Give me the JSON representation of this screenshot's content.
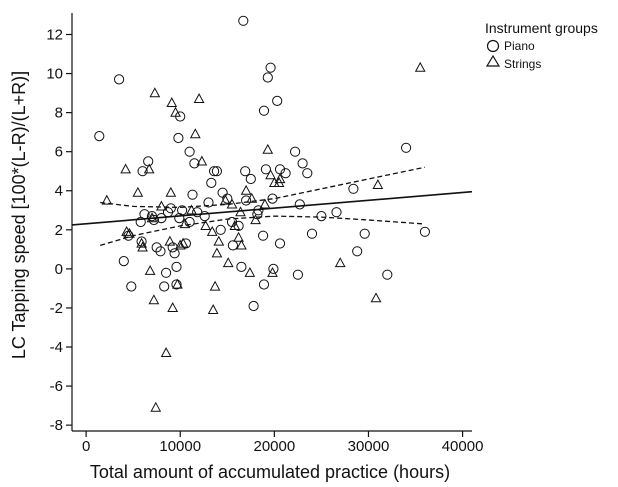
{
  "chart_data": {
    "type": "scatter",
    "xlabel": "Total amount of accumulated practice (hours)",
    "ylabel": "LC Tapping speed [100*(L-R)/(L+R)]",
    "xlim": [
      -1500,
      41000
    ],
    "ylim": [
      -8.3,
      13.1
    ],
    "xticks": [
      0,
      10000,
      20000,
      30000,
      40000
    ],
    "yticks": [
      -8,
      -6,
      -4,
      -2,
      0,
      2,
      4,
      6,
      8,
      10,
      12
    ],
    "grid": false,
    "legend": {
      "title": "Instrument groups",
      "position": "top-right",
      "entries": [
        {
          "label": "Piano",
          "marker": "circle"
        },
        {
          "label": "Strings",
          "marker": "triangle"
        }
      ]
    },
    "series": [
      {
        "name": "Piano",
        "marker": "circle",
        "points": [
          [
            1400,
            6.8
          ],
          [
            3500,
            9.7
          ],
          [
            4000,
            0.4
          ],
          [
            4500,
            1.7
          ],
          [
            4800,
            -0.9
          ],
          [
            5800,
            2.4
          ],
          [
            5900,
            1.4
          ],
          [
            6000,
            5.0
          ],
          [
            6200,
            2.8
          ],
          [
            6600,
            5.5
          ],
          [
            7000,
            2.7
          ],
          [
            7200,
            2.5
          ],
          [
            7500,
            1.1
          ],
          [
            7900,
            0.9
          ],
          [
            8000,
            2.6
          ],
          [
            8300,
            -0.9
          ],
          [
            8500,
            -0.2
          ],
          [
            8700,
            2.9
          ],
          [
            9000,
            3.1
          ],
          [
            9200,
            1.1
          ],
          [
            9400,
            0.8
          ],
          [
            9600,
            0.1
          ],
          [
            9600,
            -0.8
          ],
          [
            9800,
            6.7
          ],
          [
            9900,
            2.6
          ],
          [
            10000,
            7.8
          ],
          [
            10200,
            3.0
          ],
          [
            10600,
            1.3
          ],
          [
            11000,
            6.0
          ],
          [
            11000,
            2.4
          ],
          [
            11300,
            3.8
          ],
          [
            11500,
            5.4
          ],
          [
            11800,
            2.9
          ],
          [
            12600,
            2.7
          ],
          [
            13000,
            3.4
          ],
          [
            13300,
            4.4
          ],
          [
            13600,
            5.0
          ],
          [
            13900,
            5.0
          ],
          [
            14300,
            2.0
          ],
          [
            14500,
            3.9
          ],
          [
            15000,
            3.6
          ],
          [
            15500,
            2.4
          ],
          [
            15600,
            1.2
          ],
          [
            16200,
            2.2
          ],
          [
            16500,
            0.1
          ],
          [
            16700,
            12.7
          ],
          [
            16900,
            5.0
          ],
          [
            17000,
            3.5
          ],
          [
            17500,
            4.6
          ],
          [
            17800,
            -1.9
          ],
          [
            18200,
            2.8
          ],
          [
            18300,
            3.0
          ],
          [
            18800,
            1.7
          ],
          [
            18900,
            8.1
          ],
          [
            18900,
            -0.8
          ],
          [
            19100,
            5.1
          ],
          [
            19300,
            9.8
          ],
          [
            19600,
            10.3
          ],
          [
            19800,
            3.6
          ],
          [
            19900,
            0.0
          ],
          [
            20300,
            8.6
          ],
          [
            20600,
            1.3
          ],
          [
            20600,
            5.1
          ],
          [
            21200,
            4.9
          ],
          [
            22200,
            6.0
          ],
          [
            22500,
            -0.3
          ],
          [
            22700,
            3.3
          ],
          [
            23000,
            5.4
          ],
          [
            23500,
            4.9
          ],
          [
            24000,
            1.8
          ],
          [
            25000,
            2.7
          ],
          [
            26600,
            2.9
          ],
          [
            28400,
            4.1
          ],
          [
            28800,
            0.9
          ],
          [
            29600,
            1.8
          ],
          [
            32000,
            -0.3
          ],
          [
            34000,
            6.2
          ],
          [
            36000,
            1.9
          ]
        ]
      },
      {
        "name": "Strings",
        "marker": "triangle",
        "points": [
          [
            2200,
            3.5
          ],
          [
            4200,
            5.1
          ],
          [
            4300,
            1.9
          ],
          [
            4600,
            1.8
          ],
          [
            5500,
            3.9
          ],
          [
            5900,
            1.3
          ],
          [
            6000,
            1.1
          ],
          [
            6700,
            5.1
          ],
          [
            6800,
            -0.1
          ],
          [
            7000,
            2.6
          ],
          [
            7200,
            -1.6
          ],
          [
            7300,
            9.0
          ],
          [
            7400,
            -7.1
          ],
          [
            8000,
            3.2
          ],
          [
            8500,
            -4.3
          ],
          [
            8900,
            1.4
          ],
          [
            9000,
            3.9
          ],
          [
            9100,
            8.5
          ],
          [
            9200,
            -2.0
          ],
          [
            9500,
            8.0
          ],
          [
            9700,
            -0.8
          ],
          [
            10000,
            1.2
          ],
          [
            10300,
            1.3
          ],
          [
            10500,
            2.3
          ],
          [
            11200,
            3.0
          ],
          [
            11600,
            6.9
          ],
          [
            12000,
            8.7
          ],
          [
            12300,
            5.5
          ],
          [
            12700,
            2.2
          ],
          [
            13400,
            1.9
          ],
          [
            13500,
            -2.1
          ],
          [
            13700,
            -0.9
          ],
          [
            13900,
            0.8
          ],
          [
            14100,
            1.4
          ],
          [
            14800,
            3.5
          ],
          [
            15100,
            0.3
          ],
          [
            15500,
            3.3
          ],
          [
            15800,
            2.2
          ],
          [
            16200,
            1.6
          ],
          [
            16400,
            2.9
          ],
          [
            16500,
            1.2
          ],
          [
            17000,
            4.0
          ],
          [
            17400,
            -0.2
          ],
          [
            17600,
            3.6
          ],
          [
            18000,
            2.5
          ],
          [
            19000,
            3.3
          ],
          [
            19300,
            6.1
          ],
          [
            19600,
            4.8
          ],
          [
            19800,
            -0.2
          ],
          [
            20000,
            4.4
          ],
          [
            20500,
            4.4
          ],
          [
            20600,
            4.6
          ],
          [
            27000,
            0.3
          ],
          [
            30800,
            -1.5
          ],
          [
            31000,
            4.3
          ],
          [
            35500,
            10.3
          ]
        ]
      }
    ],
    "fit_line": {
      "style": "solid",
      "x": [
        -1500,
        41000
      ],
      "y": [
        2.25,
        3.95
      ]
    },
    "ci_upper": {
      "style": "dashed",
      "x": [
        1500,
        5000,
        10000,
        15000,
        20000,
        25000,
        30000,
        36000
      ],
      "y": [
        3.4,
        3.2,
        3.15,
        3.3,
        3.6,
        4.1,
        4.6,
        5.2
      ]
    },
    "ci_lower": {
      "style": "dashed",
      "x": [
        1500,
        5000,
        10000,
        15000,
        20000,
        25000,
        30000,
        36000
      ],
      "y": [
        1.2,
        1.7,
        2.2,
        2.55,
        2.7,
        2.65,
        2.5,
        2.3
      ]
    }
  }
}
